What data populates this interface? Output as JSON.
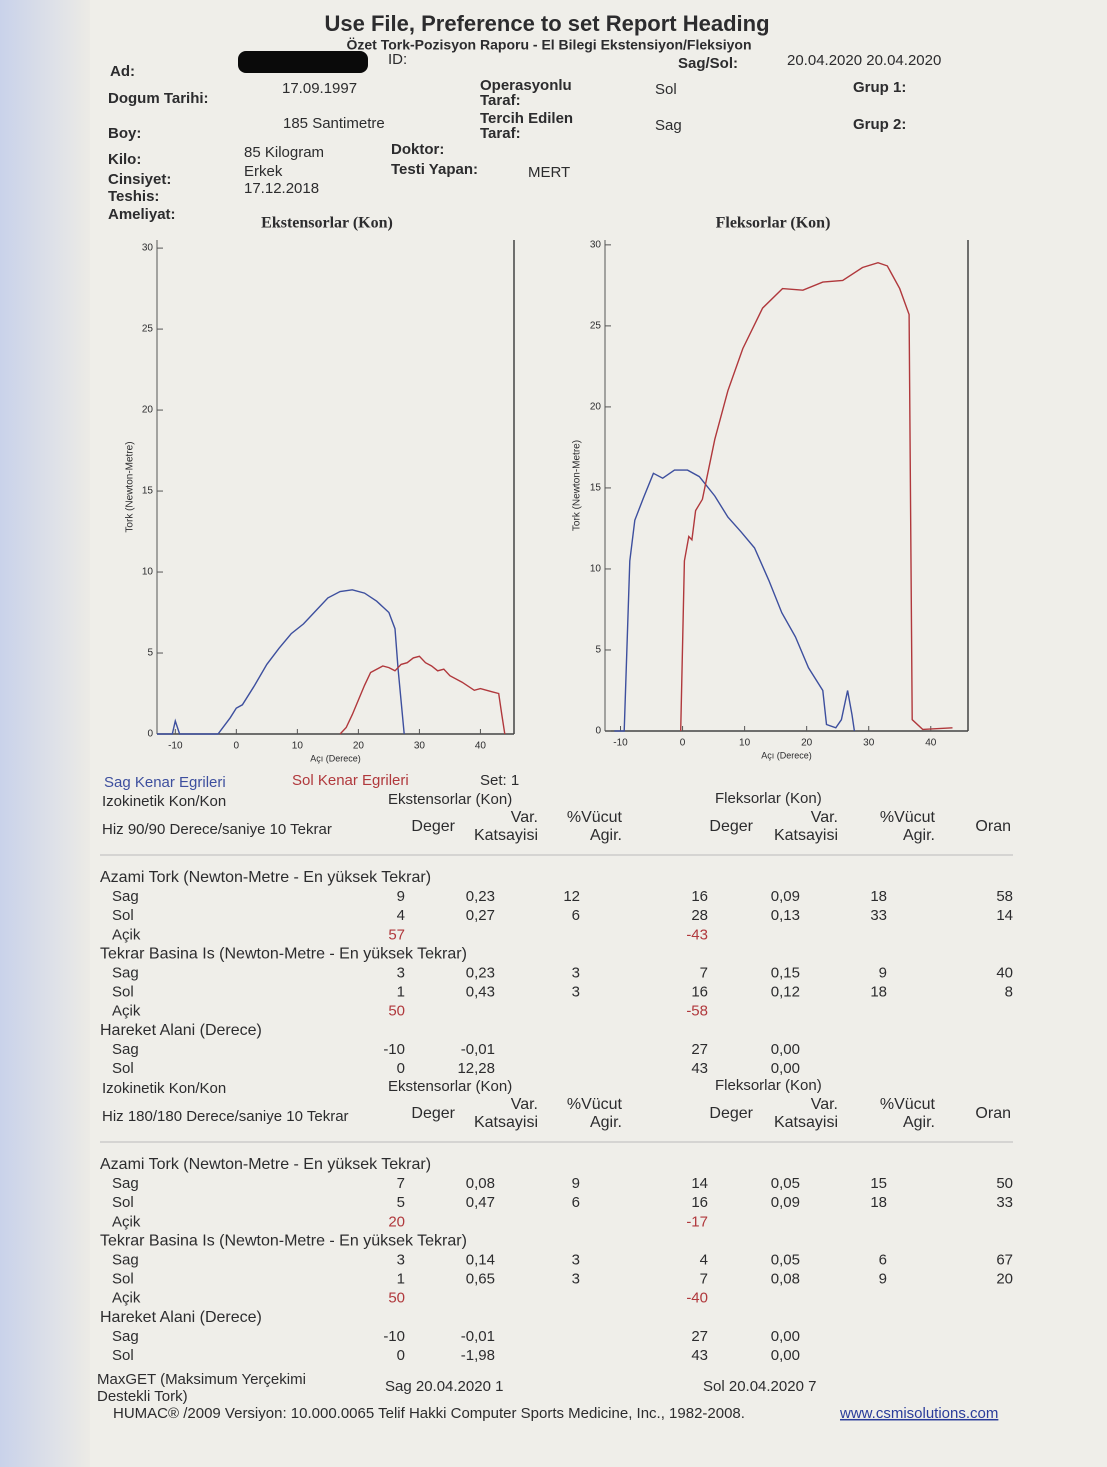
{
  "header": {
    "title": "Use File, Preference to set Report Heading",
    "subtitle": "Özet Tork-Pozisyon Raporu - El Bilegi Ekstensiyon/Fleksiyon"
  },
  "patient": {
    "name_label": "Ad:",
    "id_label": "ID:",
    "side_label": "Sag/Sol:",
    "dates": "20.04.2020 20.04.2020",
    "birth_label": "Dogum Tarihi:",
    "birth": "17.09.1997",
    "operated_label": [
      "Operasyonlu",
      "Taraf:"
    ],
    "operated": "Sol",
    "group1_label": "Grup 1:",
    "height_label": "Boy:",
    "height": "185 Santimetre",
    "preferred_label": [
      "Tercih Edilen",
      "Taraf:"
    ],
    "preferred": "Sag",
    "group2_label": "Grup 2:",
    "weight_label": "Kilo:",
    "weight": "85 Kilogram",
    "doctor_label": "Doktor:",
    "sex_label": "Cinsiyet:",
    "sex": "Erkek",
    "tester_label": "Testi Yapan:",
    "tester": "MERT",
    "diagnosis_label": "Teshis:",
    "diagnosis": "17.12.2018",
    "surgery_label": "Ameliyat:"
  },
  "chart_data": [
    {
      "type": "line",
      "title": "Ekstensorlar (Kon)",
      "x_label": "Açı (Derece)",
      "y_label": "Tork (Newton-Metre)",
      "xlim": [
        -13,
        45.5
      ],
      "xticks": [
        -10,
        0,
        10,
        20,
        30,
        40
      ],
      "ylim": [
        0,
        30.5
      ],
      "yticks": [
        0,
        5,
        10,
        15,
        20,
        25,
        30
      ],
      "series": [
        {
          "name": "Sag Kenar Egrileri",
          "color": "#3d4f9e",
          "x": [
            -13,
            -10.5,
            -10,
            -9.3,
            -8,
            -3,
            -1,
            0,
            1,
            3,
            5,
            7,
            9,
            11,
            13,
            15,
            17,
            19,
            21,
            23,
            25,
            26,
            26.5,
            27.5
          ],
          "values": [
            0,
            0,
            0.8,
            0,
            0,
            0,
            1,
            1.6,
            1.8,
            3,
            4.3,
            5.3,
            6.2,
            6.8,
            7.6,
            8.4,
            8.8,
            8.9,
            8.7,
            8.2,
            7.5,
            6.5,
            4,
            0
          ]
        },
        {
          "name": "Sol Kenar Egrileri",
          "color": "#b0383c",
          "x": [
            17,
            18,
            19,
            20,
            21,
            22,
            23,
            24,
            25,
            26,
            27,
            28,
            29,
            30,
            31,
            32,
            33,
            34,
            35,
            37,
            39,
            40,
            42,
            43,
            43.5,
            44
          ],
          "values": [
            0,
            0.4,
            1.2,
            2.1,
            3,
            3.8,
            4,
            4.2,
            4.1,
            3.9,
            4.3,
            4.4,
            4.7,
            4.8,
            4.4,
            4.2,
            3.9,
            4.0,
            3.6,
            3.2,
            2.7,
            2.8,
            2.6,
            2.5,
            1.2,
            0
          ]
        }
      ]
    },
    {
      "type": "line",
      "title": "Fleksorlar (Kon)",
      "x_label": "Açı (Derece)",
      "y_label": "Tork (Newton-Metre)",
      "xlim": [
        -12.5,
        46
      ],
      "xticks": [
        -10,
        0,
        10,
        20,
        30,
        40
      ],
      "ylim": [
        0,
        30.3
      ],
      "yticks": [
        0,
        5,
        10,
        15,
        20,
        25,
        30
      ],
      "series": [
        {
          "color": "#3d4f9e",
          "x": [
            -11,
            -9.4,
            -8.5,
            -7.7,
            -6.3,
            -4.7,
            -3.2,
            -1.3,
            0.8,
            2.7,
            5.2,
            7.3,
            9.4,
            11.6,
            13.9,
            16,
            18.2,
            20.3,
            22.6,
            23.2,
            24.7,
            25.6,
            26.6,
            27.3,
            27.7
          ],
          "values": [
            0,
            0,
            10.5,
            13,
            14.4,
            15.9,
            15.6,
            16.1,
            16.1,
            15.7,
            14.5,
            13.2,
            12.3,
            11.3,
            9.3,
            7.3,
            5.8,
            3.9,
            2.5,
            0.4,
            0.2,
            0.7,
            2.5,
            1.0,
            0
          ]
        },
        {
          "color": "#b0383c",
          "x": [
            -0.3,
            0.3,
            1,
            1.5,
            2.1,
            3.2,
            5.2,
            7.3,
            9.7,
            12.9,
            16.1,
            19.4,
            22.6,
            25.8,
            29,
            31.5,
            33,
            35,
            36.5,
            37,
            38.7,
            43.5
          ],
          "values": [
            0,
            10.5,
            12,
            11.8,
            13.6,
            14.3,
            18,
            21,
            23.6,
            26.1,
            27.3,
            27.2,
            27.7,
            27.8,
            28.6,
            28.9,
            28.7,
            27.3,
            25.7,
            0.7,
            0.1,
            0.2
          ]
        }
      ]
    }
  ],
  "set": "Set: 1",
  "tables": [
    {
      "title": "Izokinetik Kon/Kon",
      "speed": "Hiz 90/90 Derece/saniye 10 Tekrar",
      "ext_title": "Ekstensorlar (Kon)",
      "flex_title": "Fleksorlar (Kon)",
      "columns": [
        [
          "Deger"
        ],
        [
          "Var.",
          "Katsayisi"
        ],
        [
          "%Vücut",
          "Agir."
        ],
        [
          "Deger"
        ],
        [
          "Var.",
          "Katsayisi"
        ],
        [
          "%Vücut",
          "Agir."
        ],
        [
          "Oran"
        ]
      ],
      "groups": [
        {
          "title": "Azami Tork (Newton-Metre - En yüksek Tekrar)",
          "rows": [
            {
              "label": "Sag",
              "cells": [
                9,
                "0,23",
                12,
                16,
                "0,09",
                18,
                58
              ]
            },
            {
              "label": "Sol",
              "cells": [
                4,
                "0,27",
                6,
                28,
                "0,13",
                33,
                14
              ]
            },
            {
              "label": "Açik",
              "color": "#b0383c",
              "cells": [
                57,
                null,
                null,
                -43,
                null,
                null,
                null
              ]
            }
          ]
        },
        {
          "title": "Tekrar Basina Is (Newton-Metre - En yüksek Tekrar)",
          "rows": [
            {
              "label": "Sag",
              "cells": [
                3,
                "0,23",
                3,
                7,
                "0,15",
                9,
                40
              ]
            },
            {
              "label": "Sol",
              "cells": [
                1,
                "0,43",
                3,
                16,
                "0,12",
                18,
                8
              ]
            },
            {
              "label": "Açik",
              "color": "#b0383c",
              "cells": [
                50,
                null,
                null,
                -58,
                null,
                null,
                null
              ]
            }
          ]
        },
        {
          "title": "Hareket Alani (Derece)",
          "rows": [
            {
              "label": "Sag",
              "cells": [
                -10,
                "-0,01",
                null,
                27,
                "0,00",
                null,
                null
              ]
            },
            {
              "label": "Sol",
              "cells": [
                0,
                "12,28",
                null,
                43,
                "0,00",
                null,
                null
              ]
            }
          ]
        }
      ]
    },
    {
      "title": "Izokinetik Kon/Kon",
      "speed": "Hiz 180/180 Derece/saniye 10 Tekrar",
      "ext_title": "Ekstensorlar (Kon)",
      "flex_title": "Fleksorlar (Kon)",
      "columns": [
        [
          "Deger"
        ],
        [
          "Var.",
          "Katsayisi"
        ],
        [
          "%Vücut",
          "Agir."
        ],
        [
          "Deger"
        ],
        [
          "Var.",
          "Katsayisi"
        ],
        [
          "%Vücut",
          "Agir."
        ],
        [
          "Oran"
        ]
      ],
      "groups": [
        {
          "title": "Azami Tork (Newton-Metre - En yüksek Tekrar)",
          "rows": [
            {
              "label": "Sag",
              "cells": [
                7,
                "0,08",
                9,
                14,
                "0,05",
                15,
                50
              ]
            },
            {
              "label": "Sol",
              "cells": [
                5,
                "0,47",
                6,
                16,
                "0,09",
                18,
                33
              ]
            },
            {
              "label": "Açik",
              "color": "#b0383c",
              "cells": [
                20,
                null,
                null,
                -17,
                null,
                null,
                null
              ]
            }
          ]
        },
        {
          "title": "Tekrar Basina Is (Newton-Metre - En yüksek Tekrar)",
          "rows": [
            {
              "label": "Sag",
              "cells": [
                3,
                "0,14",
                3,
                4,
                "0,05",
                6,
                67
              ]
            },
            {
              "label": "Sol",
              "cells": [
                1,
                "0,65",
                3,
                7,
                "0,08",
                9,
                20
              ]
            },
            {
              "label": "Açik",
              "color": "#b0383c",
              "cells": [
                50,
                null,
                null,
                -40,
                null,
                null,
                null
              ]
            }
          ]
        },
        {
          "title": "Hareket Alani (Derece)",
          "rows": [
            {
              "label": "Sag",
              "cells": [
                -10,
                "-0,01",
                null,
                27,
                "0,00",
                null,
                null
              ]
            },
            {
              "label": "Sol",
              "cells": [
                0,
                "-1,98",
                null,
                43,
                "0,00",
                null,
                null
              ]
            }
          ]
        }
      ]
    }
  ],
  "footer": {
    "maxget_label": [
      "MaxGET (Maksimum Yerçekimi",
      "Destekli Tork)"
    ],
    "maxget_sag": "Sag 20.04.2020 1",
    "maxget_sol": "Sol 20.04.2020 7",
    "copyright": "HUMAC® /2009 Versiyon: 10.000.0065 Telif Hakki Computer Sports Medicine, Inc., 1982-2008.",
    "url": "www.csmisolutions.com"
  }
}
